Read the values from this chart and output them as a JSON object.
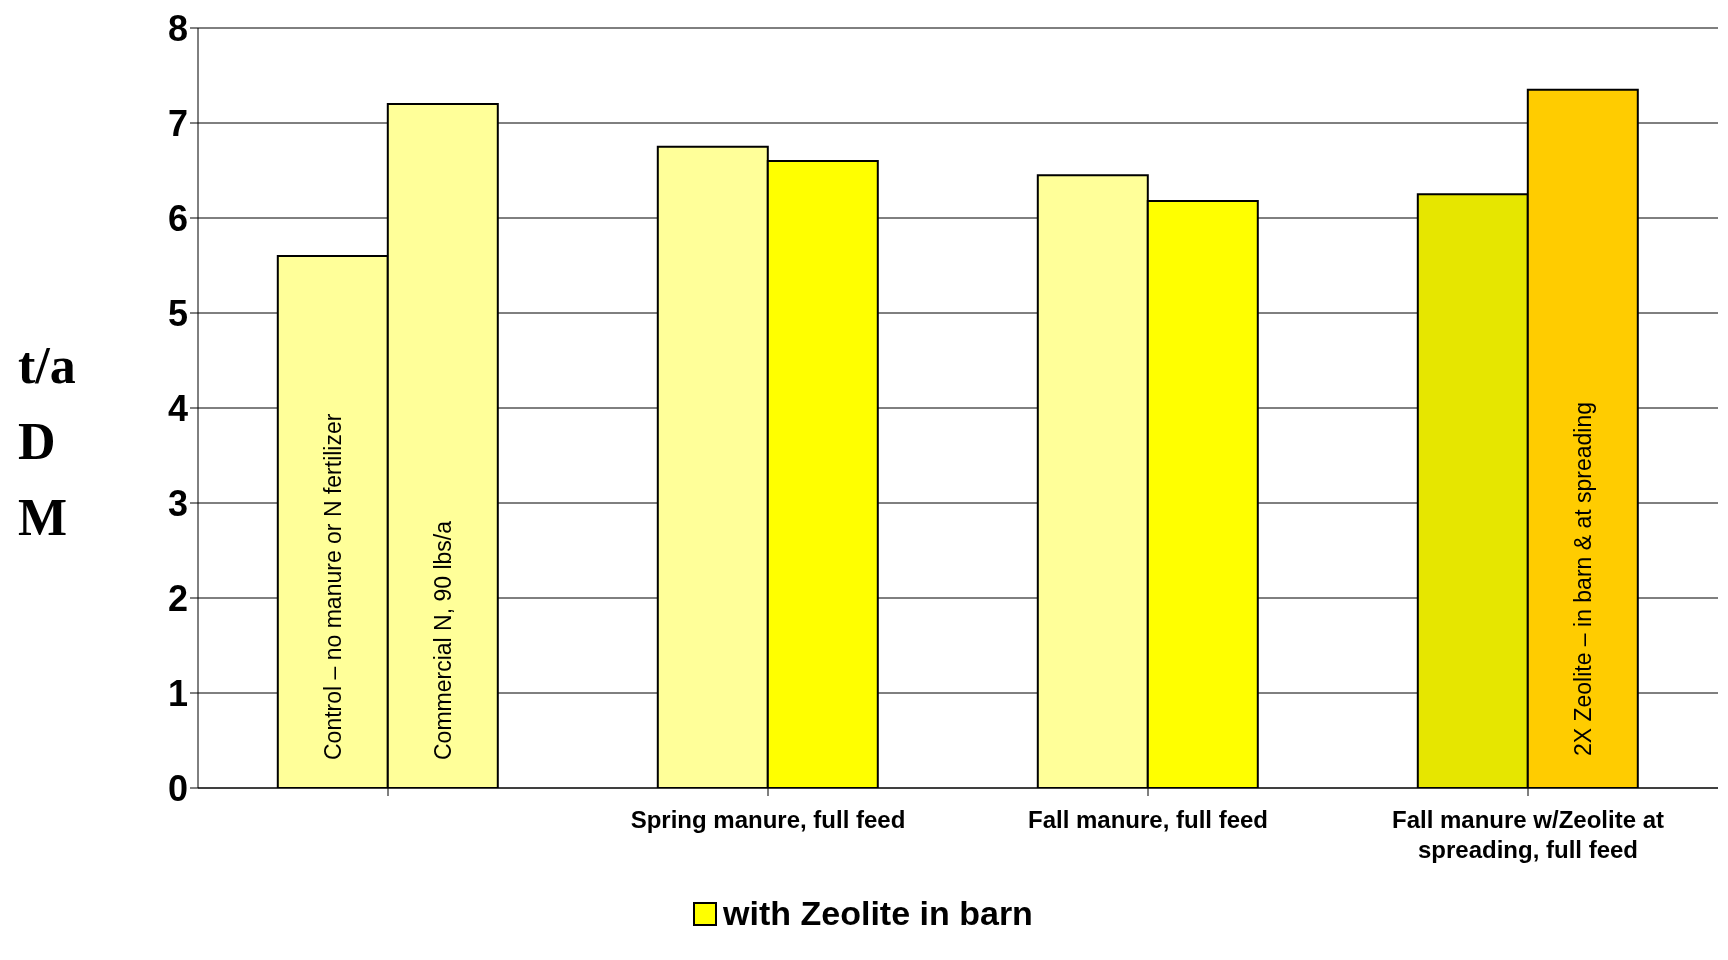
{
  "chart_data": {
    "type": "bar",
    "categories": [
      null,
      "Spring manure, full feed",
      "Fall manure, full feed",
      "Fall manure w/Zeolite at spreading, full feed"
    ],
    "series": [
      {
        "colors": [
          "#ffff99",
          "#ffff99",
          "#ffff99",
          "#e6e600"
        ],
        "values": [
          5.6,
          6.75,
          6.45,
          6.25
        ]
      },
      {
        "name": "with Zeolite in barn",
        "color": "#ffff00",
        "colors": [
          "#ffff99",
          "#ffff00",
          "#ffff00",
          "#ffcc00"
        ],
        "values": [
          7.2,
          6.6,
          6.18,
          7.35
        ]
      }
    ],
    "annotations": [
      "Control – no manure or N fertilizer",
      "Commercial N, 90 lbs/a",
      {
        "text": "2X Zeolite – in barn & at spreading",
        "x": "Fall manure w/Zeolite at spreading, full feed",
        "y": 2.2
      }
    ],
    "ylabel": "t/a D M",
    "ylim": [
      0,
      8
    ],
    "yticks": [
      0,
      1,
      2,
      3,
      4,
      5,
      6,
      7,
      8
    ],
    "grid": "y",
    "legend": "bottom"
  }
}
